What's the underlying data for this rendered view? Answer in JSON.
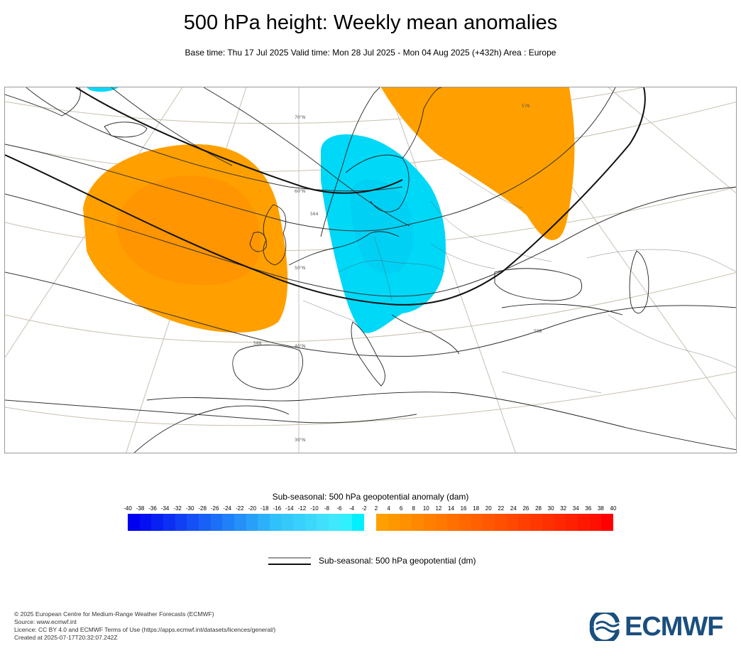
{
  "title": "500 hPa height: Weekly mean anomalies",
  "subtitle": "Base time: Thu 17 Jul 2025 Valid time: Mon 28 Jul 2025 - Mon 04 Aug 2025 (+432h) Area : Europe",
  "map": {
    "area": "Europe",
    "colors": {
      "positive_anomaly": "#ffa000",
      "positive_core": "#ff8c00",
      "negative_anomaly": "#00d8f8",
      "negative_core": "#00c8f0",
      "coastline": "#222222",
      "graticule": "#b8b0a0",
      "contour": "#333333"
    },
    "contour_labels": [
      "564",
      "588",
      "588",
      "576"
    ],
    "graticule_labels": [
      "70°N",
      "60°N",
      "50°N",
      "40°N",
      "30°N"
    ]
  },
  "colorbar": {
    "title": "Sub-seasonal: 500 hPa geopotential anomaly (dam)",
    "negative_ticks": [
      "-40",
      "-38",
      "-36",
      "-34",
      "-32",
      "-30",
      "-28",
      "-26",
      "-24",
      "-22",
      "-20",
      "-18",
      "-16",
      "-14",
      "-12",
      "-10",
      "-8",
      "-6",
      "-4",
      "-2"
    ],
    "positive_ticks": [
      "2",
      "4",
      "6",
      "8",
      "10",
      "12",
      "14",
      "16",
      "18",
      "20",
      "22",
      "24",
      "26",
      "28",
      "30",
      "32",
      "34",
      "36",
      "38",
      "40"
    ],
    "negative_colors": [
      "#0000f0",
      "#0410f1",
      "#0820f2",
      "#0c30f3",
      "#1040f4",
      "#1450f5",
      "#1860f6",
      "#1c70f7",
      "#2080f8",
      "#2490f8",
      "#28a0f9",
      "#2cb0fa",
      "#30c0fb",
      "#34c8fb",
      "#38d0fc",
      "#3cd8fc",
      "#40e0fd",
      "#40e8fd",
      "#30f0fe",
      "#00f0ff"
    ],
    "positive_colors": [
      "#ffa000",
      "#ff9800",
      "#ff9000",
      "#ff8800",
      "#ff8000",
      "#ff7800",
      "#ff7000",
      "#ff6800",
      "#ff6000",
      "#ff5800",
      "#ff5000",
      "#ff4800",
      "#ff4000",
      "#ff3800",
      "#ff3000",
      "#ff2800",
      "#ff2000",
      "#ff1800",
      "#ff1000",
      "#ff0000"
    ]
  },
  "line_legend": {
    "label": "Sub-seasonal: 500 hPa geopotential (dm)"
  },
  "footer": {
    "lines": [
      "© 2025 European Centre for Medium-Range Weather Forecasts (ECMWF)",
      "Source: www.ecmwf.int",
      "Licence: CC BY 4.0 and ECMWF Terms of Use (https://apps.ecmwf.int/datasets/licences/general/)",
      "Created at 2025-07-17T20:32:07.242Z"
    ]
  },
  "logo": {
    "text": "ECMWF",
    "color": "#1a4f7e"
  }
}
